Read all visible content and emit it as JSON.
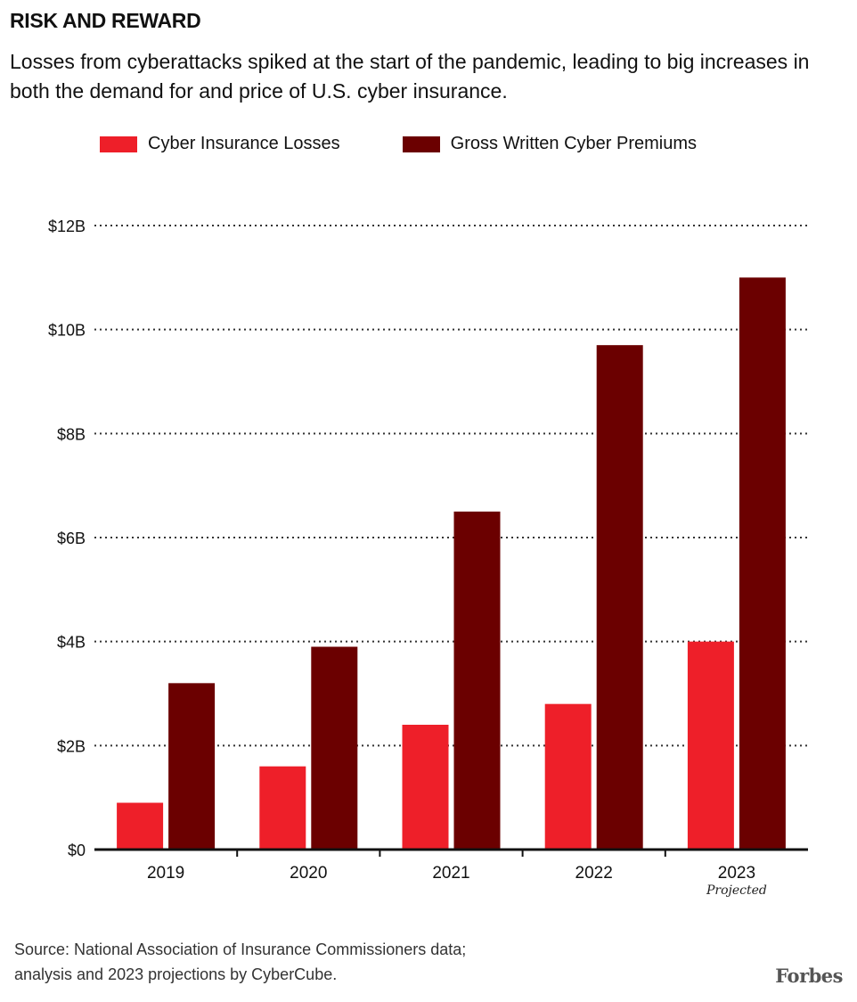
{
  "header": {
    "title": "RISK AND REWARD",
    "subtitle": "Losses from cyberattacks spiked at the start of the pandemic, leading to big increases in both the demand for and price of U.S. cyber insurance."
  },
  "legend": [
    {
      "label": "Cyber Insurance Losses",
      "color": "#ee1f29"
    },
    {
      "label": "Gross Written Cyber Premiums",
      "color": "#6b0000"
    }
  ],
  "chart_data": {
    "type": "bar",
    "title": "RISK AND REWARD",
    "categories": [
      "2019",
      "2020",
      "2021",
      "2022",
      "2023"
    ],
    "category_notes": [
      "",
      "",
      "",
      "",
      "Projected"
    ],
    "series": [
      {
        "name": "Cyber Insurance Losses",
        "color": "#ee1f29",
        "values": [
          0.9,
          1.6,
          2.4,
          2.8,
          4.0
        ]
      },
      {
        "name": "Gross Written Cyber Premiums",
        "color": "#6b0000",
        "values": [
          3.2,
          3.9,
          6.5,
          9.7,
          11.0
        ]
      }
    ],
    "yticks": [
      0,
      2,
      4,
      6,
      8,
      10,
      12
    ],
    "ytick_labels": [
      "$0",
      "$2B",
      "$4B",
      "$6B",
      "$8B",
      "$10B",
      "$12B"
    ],
    "ylim": [
      0,
      12
    ],
    "xlabel": "",
    "ylabel": "",
    "grid": true,
    "legend_position": "top-left"
  },
  "footer": {
    "source_line1": "Source: National Association of Insurance Commissioners data;",
    "source_line2": "analysis and 2023 projections by CyberCube.",
    "brand": "Forbes"
  }
}
